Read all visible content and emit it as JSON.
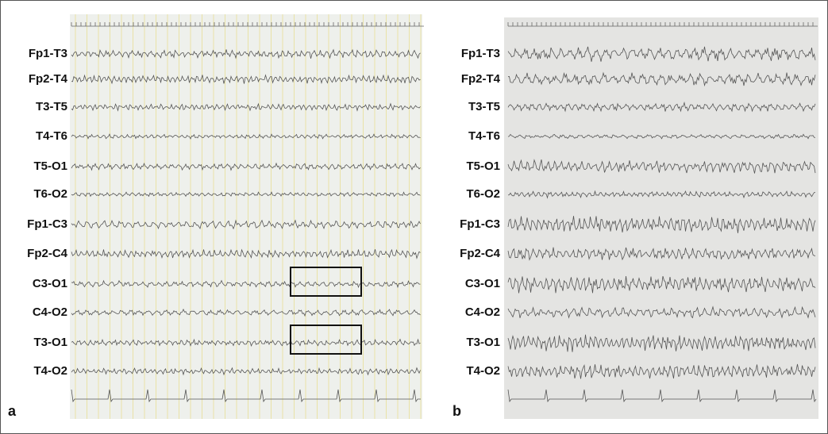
{
  "panels": [
    {
      "label": "a",
      "channels": [
        "Fp1-T3",
        "Fp2-T4",
        "T3-T5",
        "T4-T6",
        "T5-O1",
        "T6-O2",
        "Fp1-C3",
        "Fp2-C4",
        "C3-O1",
        "C4-O2",
        "T3-O1",
        "T4-O2"
      ]
    },
    {
      "label": "b",
      "channels": [
        "Fp1-T3",
        "Fp2-T4",
        "T3-T5",
        "T4-T6",
        "T5-O1",
        "T6-O2",
        "Fp1-C3",
        "Fp2-C4",
        "C3-O1",
        "C4-O2",
        "T3-O1",
        "T4-O2"
      ]
    }
  ]
}
